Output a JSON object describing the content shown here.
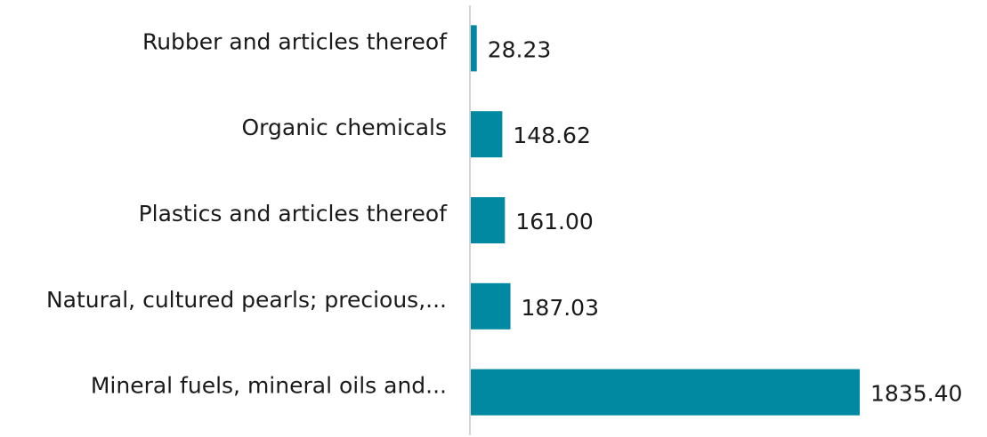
{
  "chart_data": {
    "type": "bar",
    "orientation": "horizontal",
    "categories": [
      "Rubber and articles thereof",
      "Organic chemicals",
      "Plastics and articles thereof",
      "Natural, cultured pearls; precious,...",
      "Mineral fuels, mineral oils and..."
    ],
    "values": [
      28.23,
      148.62,
      161.0,
      187.03,
      1835.4
    ],
    "value_labels": [
      "28.23",
      "148.62",
      "161.00",
      "187.03",
      "1835.40"
    ],
    "color": "#0089a0"
  }
}
